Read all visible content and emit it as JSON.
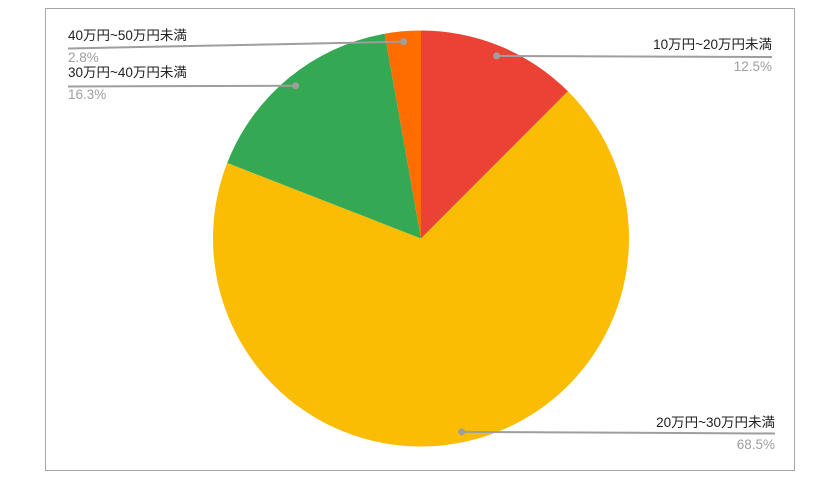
{
  "chart_data": {
    "type": "pie",
    "title": "",
    "legend": "labeled-callouts",
    "direction": "clockwise",
    "start_angle_deg": 0,
    "slices": [
      {
        "label": "10万円~20万円未満",
        "value": 12.5,
        "pct_text": "12.5%",
        "color": "#EA4335"
      },
      {
        "label": "20万円~30万円未満",
        "value": 68.5,
        "pct_text": "68.5%",
        "color": "#FBBC04"
      },
      {
        "label": "30万円~40万円未満",
        "value": 16.3,
        "pct_text": "16.3%",
        "color": "#34A853"
      },
      {
        "label": "40万円~50万円未満",
        "value": 2.8,
        "pct_text": "2.8%",
        "color": "#FF6D01"
      }
    ],
    "label_text_color": "#212121",
    "percent_text_color": "#9e9e9e",
    "leader_line_color": "#9e9e9e",
    "frame_border_color": "#a6a6a6",
    "background_color": "#ffffff"
  }
}
